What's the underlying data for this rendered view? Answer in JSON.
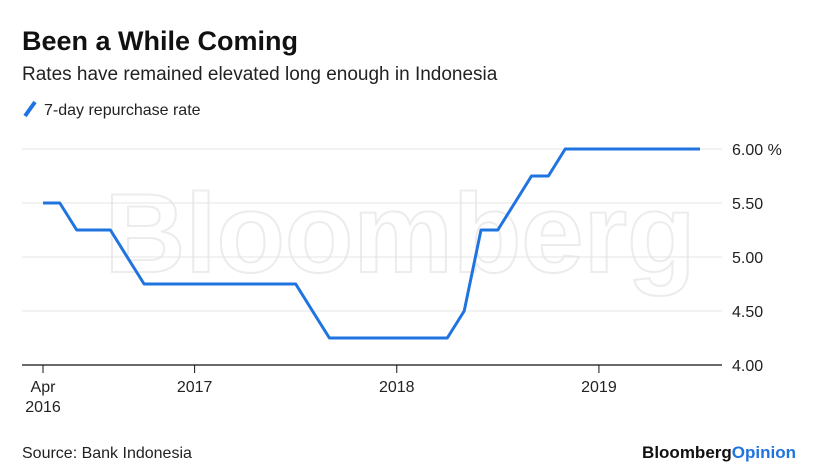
{
  "chart_data": {
    "type": "line",
    "title": "Been a While Coming",
    "subtitle": "Rates have remained elevated long enough in Indonesia",
    "watermark": "Bloomberg",
    "source": "Source: Bank Indonesia",
    "brand": [
      "Bloomberg",
      "Opinion"
    ],
    "x": [
      "2016-04",
      "2016-05",
      "2016-06",
      "2016-07",
      "2016-08",
      "2016-09",
      "2016-10",
      "2016-11",
      "2016-12",
      "2017-01",
      "2017-02",
      "2017-03",
      "2017-04",
      "2017-05",
      "2017-06",
      "2017-07",
      "2017-08",
      "2017-09",
      "2017-10",
      "2017-11",
      "2017-12",
      "2018-01",
      "2018-02",
      "2018-03",
      "2018-04",
      "2018-05",
      "2018-06",
      "2018-07",
      "2018-08",
      "2018-09",
      "2018-10",
      "2018-11",
      "2018-12",
      "2019-01",
      "2019-02",
      "2019-03",
      "2019-04",
      "2019-05",
      "2019-06",
      "2019-07"
    ],
    "series": [
      {
        "name": "7-day repurchase rate",
        "color": "#1f74e0",
        "values": [
          5.5,
          5.5,
          5.25,
          5.25,
          5.25,
          5.0,
          4.75,
          4.75,
          4.75,
          4.75,
          4.75,
          4.75,
          4.75,
          4.75,
          4.75,
          4.75,
          4.5,
          4.25,
          4.25,
          4.25,
          4.25,
          4.25,
          4.25,
          4.25,
          4.25,
          4.5,
          5.25,
          5.25,
          5.5,
          5.75,
          5.75,
          6.0,
          6.0,
          6.0,
          6.0,
          6.0,
          6.0,
          6.0,
          6.0,
          6.0
        ]
      }
    ],
    "xlim": [
      "2016-04",
      "2019-07"
    ],
    "xticks": [
      {
        "value": "2016-04",
        "label": "Apr 2016"
      },
      {
        "value": "2017-01",
        "label": "2017"
      },
      {
        "value": "2018-01",
        "label": "2018"
      },
      {
        "value": "2019-01",
        "label": "2019"
      }
    ],
    "ylim": [
      4,
      6
    ],
    "yticks": [
      {
        "value": 6,
        "label": "6.00 %"
      },
      {
        "value": 5.5,
        "label": "5.50"
      },
      {
        "value": 5,
        "label": "5.00"
      },
      {
        "value": 4.5,
        "label": "4.50"
      },
      {
        "value": 4,
        "label": "4.00"
      }
    ],
    "grid": true
  }
}
